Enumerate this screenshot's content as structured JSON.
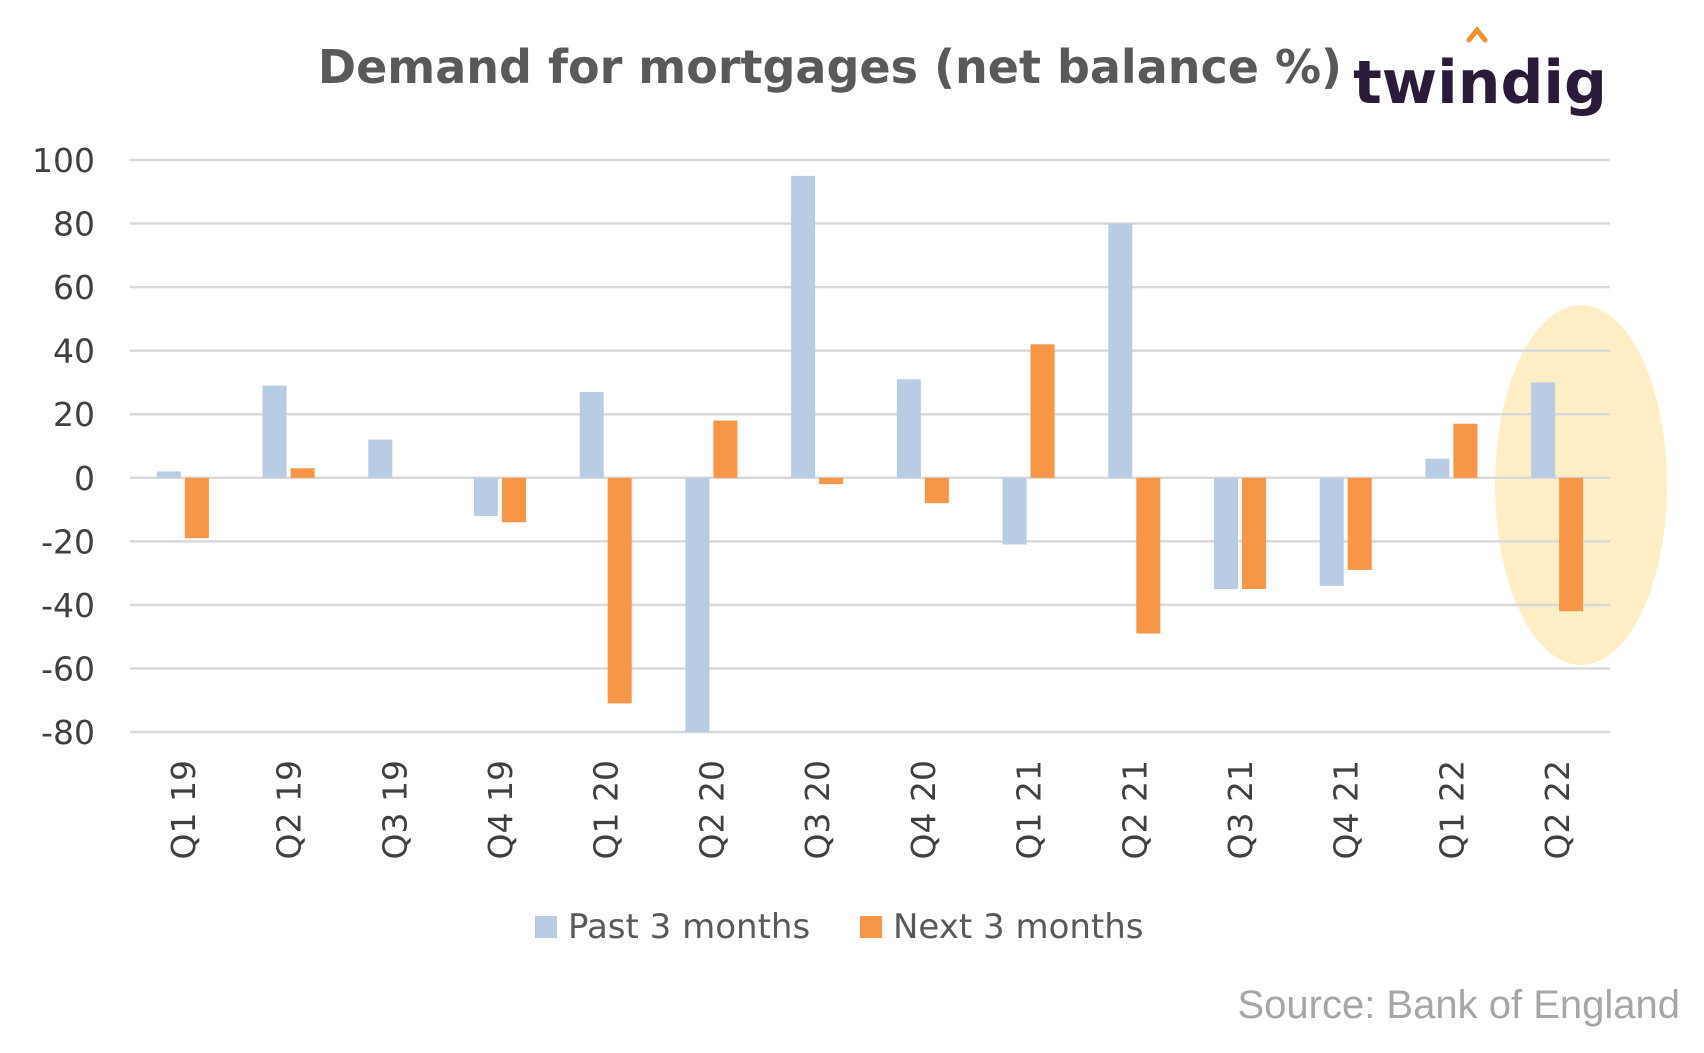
{
  "brand": {
    "name": "twindig",
    "accent": "#f0922e",
    "text_color": "#2b1b3a"
  },
  "source": "Source: Bank of England",
  "highlight_color": "#fdeec5",
  "chart_data": {
    "type": "bar",
    "title": "Demand for mortgages (net balance %)",
    "xlabel": "",
    "ylabel": "",
    "ylim": [
      -80,
      100
    ],
    "yticks": [
      100,
      80,
      60,
      40,
      20,
      0,
      -20,
      -40,
      -60,
      -80
    ],
    "grid": true,
    "legend_position": "bottom",
    "categories": [
      "Q1 19",
      "Q2 19",
      "Q3 19",
      "Q4 19",
      "Q1 20",
      "Q2 20",
      "Q3 20",
      "Q4 20",
      "Q1 21",
      "Q2 21",
      "Q3 21",
      "Q4 21",
      "Q1 22",
      "Q2 22"
    ],
    "series": [
      {
        "name": "Past 3 months",
        "color": "#b8cce4",
        "values": [
          2,
          29,
          12,
          -12,
          27,
          -80,
          95,
          31,
          -21,
          80,
          -35,
          -34,
          6,
          30
        ]
      },
      {
        "name": "Next 3 months",
        "color": "#f79646",
        "values": [
          -19,
          3,
          0,
          -14,
          -71,
          18,
          -2,
          -8,
          42,
          -49,
          -35,
          -29,
          17,
          -42
        ]
      }
    ],
    "highlight_category": "Q2 22"
  }
}
